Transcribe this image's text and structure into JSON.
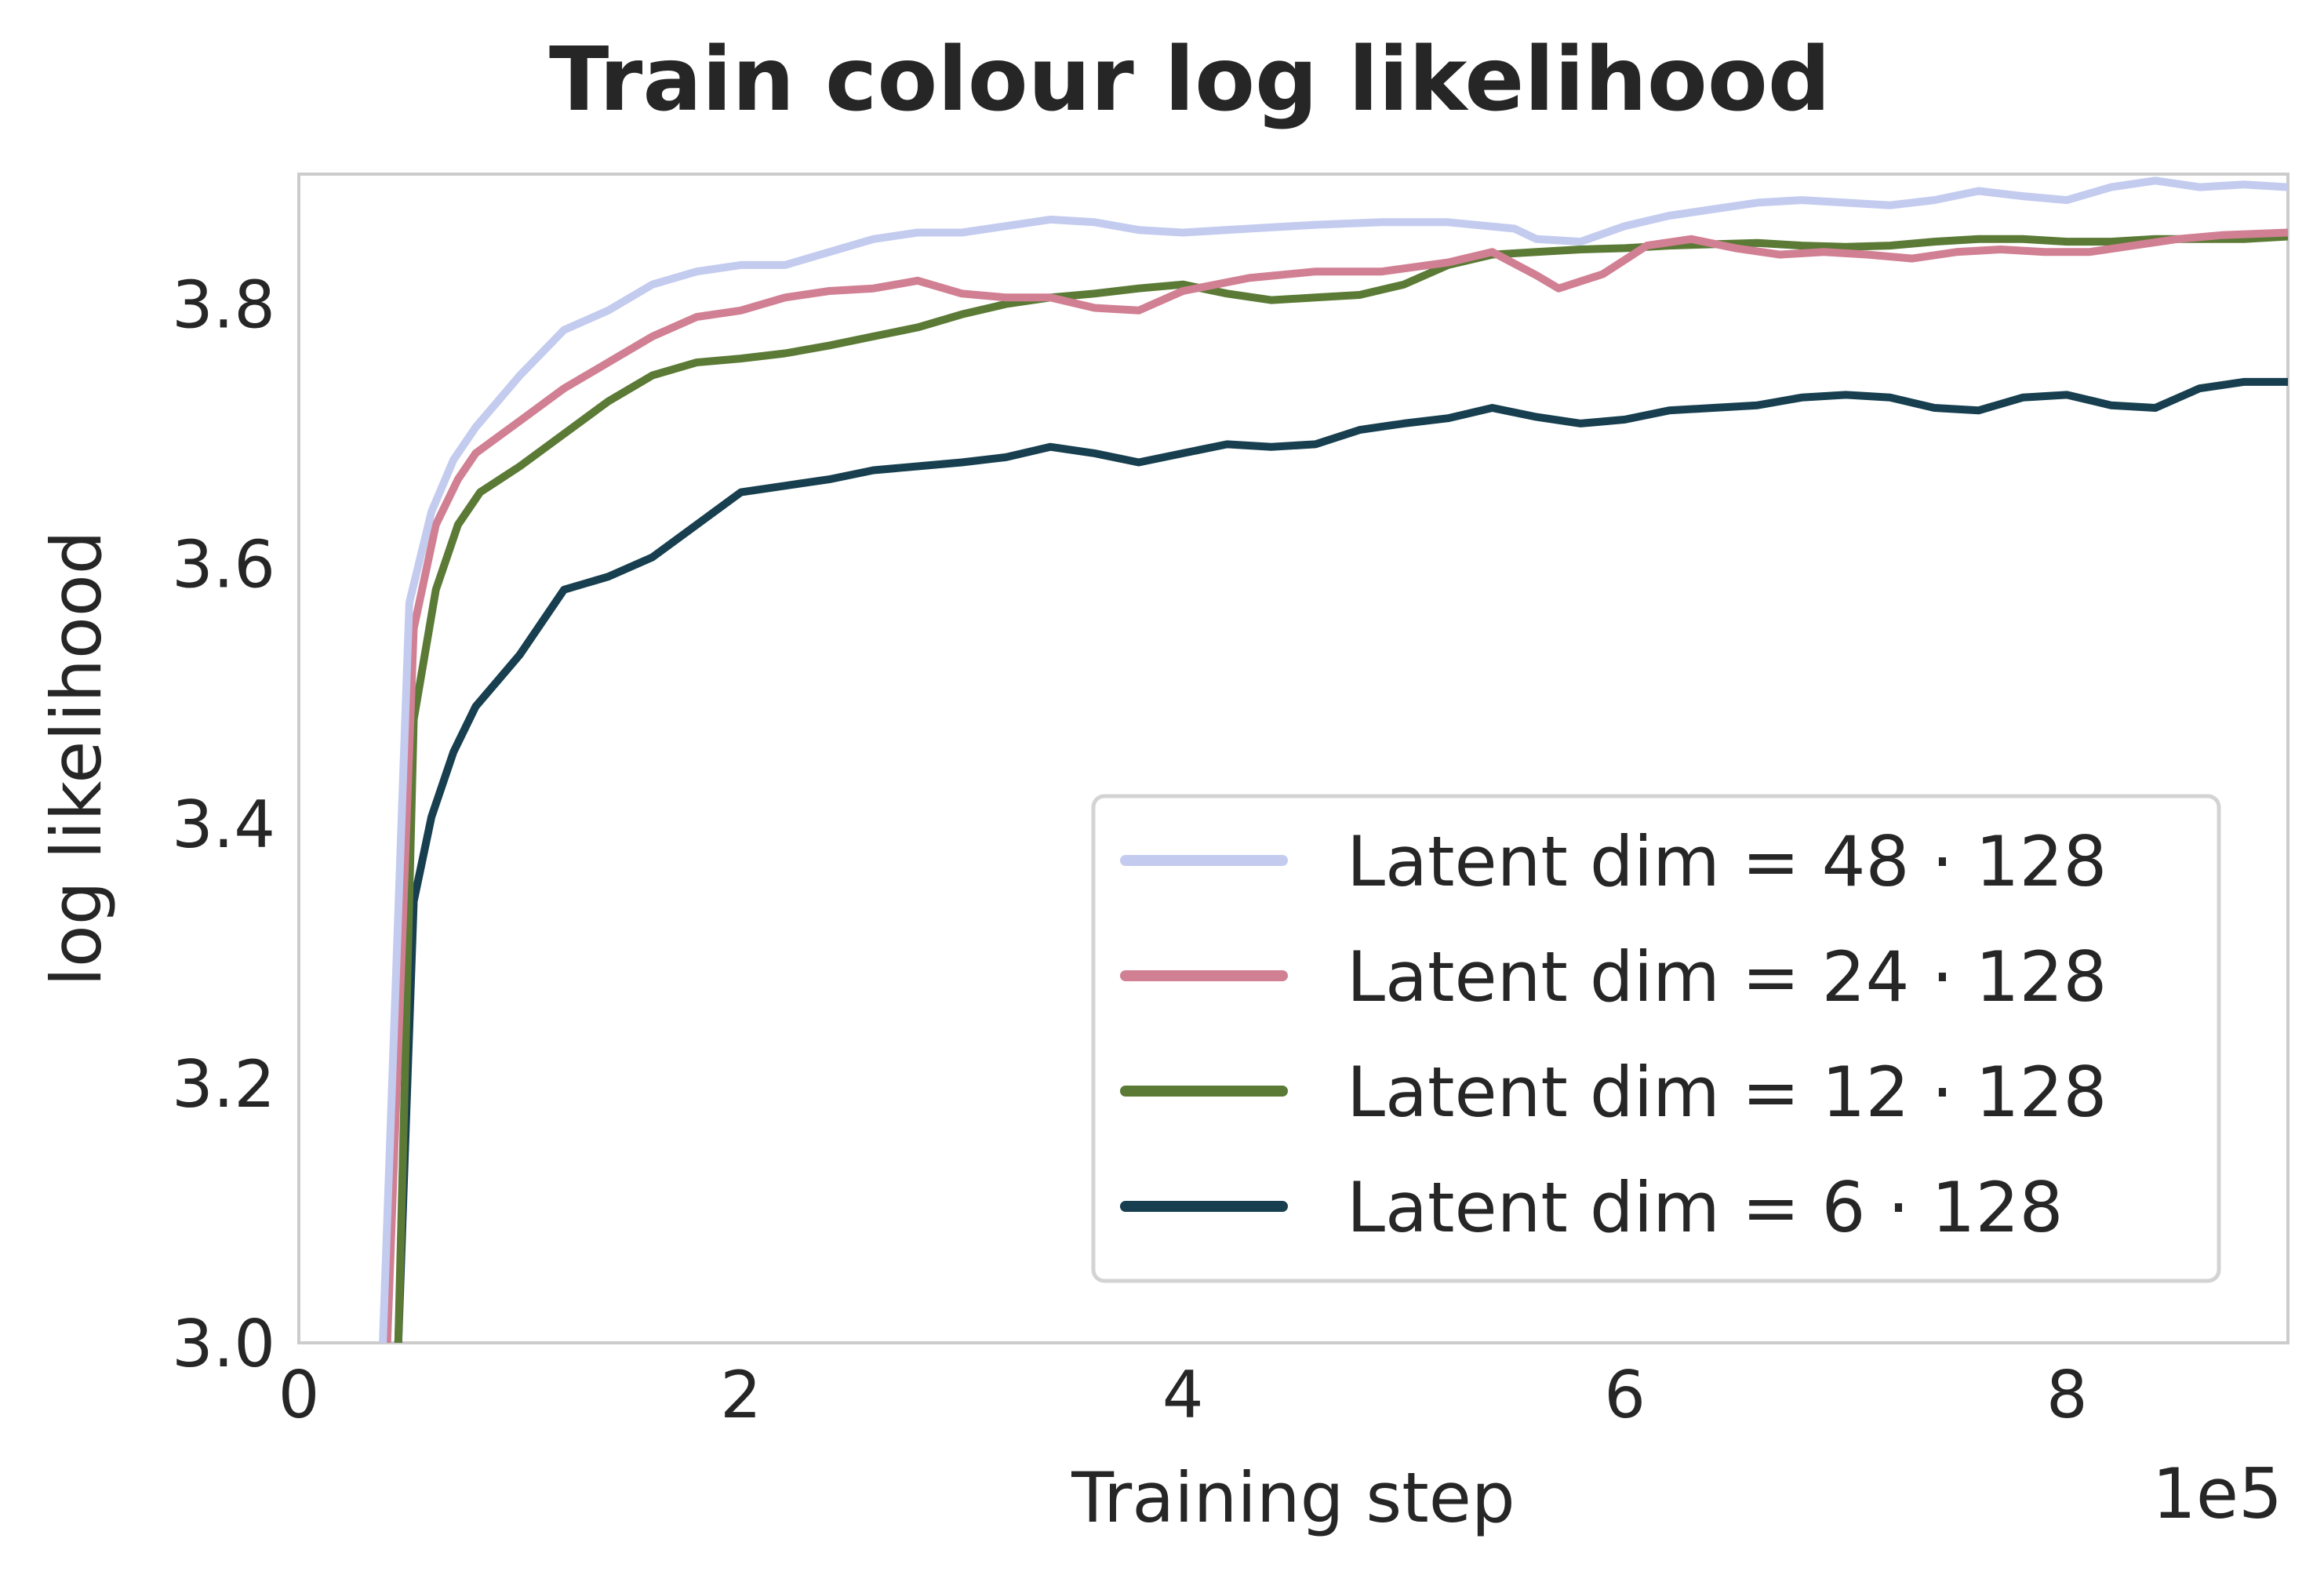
{
  "chart_data": {
    "type": "line",
    "title": "Train colour log likelihood",
    "xlabel": "Training step",
    "ylabel": "log likelihood",
    "x_offset_label": "1e5",
    "xlim": [
      0,
      900000
    ],
    "ylim": [
      3.0,
      3.9
    ],
    "x_ticks": [
      0,
      200000,
      400000,
      600000,
      800000
    ],
    "x_tick_labels": [
      "0",
      "2",
      "4",
      "6",
      "8"
    ],
    "y_ticks": [
      3.0,
      3.2,
      3.4,
      3.6,
      3.8
    ],
    "y_tick_labels": [
      "3.0",
      "3.2",
      "3.4",
      "3.6",
      "3.8"
    ],
    "grid": false,
    "legend_position": "lower-right",
    "series": [
      {
        "name": "Latent dim = 48 · 128",
        "color": "#c3cbef",
        "x": [
          38000,
          50000,
          60000,
          70000,
          80000,
          90000,
          100000,
          120000,
          140000,
          160000,
          180000,
          200000,
          220000,
          240000,
          260000,
          280000,
          300000,
          320000,
          340000,
          360000,
          380000,
          400000,
          430000,
          460000,
          490000,
          520000,
          550000,
          560000,
          580000,
          600000,
          620000,
          640000,
          660000,
          680000,
          700000,
          720000,
          740000,
          760000,
          780000,
          800000,
          820000,
          840000,
          860000,
          880000,
          900000
        ],
        "y": [
          3.0,
          3.57,
          3.64,
          3.68,
          3.705,
          3.725,
          3.745,
          3.78,
          3.795,
          3.815,
          3.825,
          3.83,
          3.83,
          3.84,
          3.85,
          3.855,
          3.855,
          3.86,
          3.865,
          3.863,
          3.857,
          3.855,
          3.858,
          3.861,
          3.863,
          3.863,
          3.858,
          3.85,
          3.848,
          3.86,
          3.868,
          3.873,
          3.878,
          3.88,
          3.878,
          3.876,
          3.88,
          3.887,
          3.883,
          3.88,
          3.89,
          3.895,
          3.89,
          3.892,
          3.89
        ]
      },
      {
        "name": "Latent dim = 24 · 128",
        "color": "#d17f93",
        "x": [
          40000,
          52000,
          62000,
          72000,
          80000,
          100000,
          120000,
          140000,
          160000,
          180000,
          200000,
          220000,
          240000,
          260000,
          280000,
          300000,
          320000,
          340000,
          360000,
          380000,
          400000,
          430000,
          460000,
          490000,
          520000,
          540000,
          560000,
          570000,
          590000,
          610000,
          630000,
          650000,
          670000,
          690000,
          710000,
          730000,
          750000,
          770000,
          790000,
          810000,
          830000,
          850000,
          870000,
          900000
        ],
        "y": [
          3.0,
          3.55,
          3.63,
          3.665,
          3.685,
          3.71,
          3.735,
          3.755,
          3.775,
          3.79,
          3.795,
          3.805,
          3.81,
          3.812,
          3.818,
          3.808,
          3.805,
          3.805,
          3.797,
          3.795,
          3.81,
          3.82,
          3.825,
          3.825,
          3.832,
          3.84,
          3.822,
          3.812,
          3.823,
          3.845,
          3.85,
          3.843,
          3.838,
          3.84,
          3.838,
          3.835,
          3.84,
          3.842,
          3.84,
          3.84,
          3.845,
          3.85,
          3.853,
          3.855
        ]
      },
      {
        "name": "Latent dim = 12 · 128",
        "color": "#5b7a36",
        "x": [
          45000,
          52000,
          62000,
          72000,
          82000,
          100000,
          120000,
          140000,
          160000,
          180000,
          200000,
          220000,
          240000,
          260000,
          280000,
          300000,
          320000,
          340000,
          360000,
          380000,
          400000,
          420000,
          440000,
          460000,
          480000,
          500000,
          520000,
          540000,
          560000,
          580000,
          600000,
          620000,
          640000,
          660000,
          680000,
          700000,
          720000,
          740000,
          760000,
          780000,
          800000,
          820000,
          840000,
          860000,
          880000,
          900000
        ],
        "y": [
          3.0,
          3.48,
          3.58,
          3.63,
          3.655,
          3.675,
          3.7,
          3.725,
          3.745,
          3.755,
          3.758,
          3.762,
          3.768,
          3.775,
          3.782,
          3.792,
          3.8,
          3.805,
          3.808,
          3.812,
          3.815,
          3.808,
          3.803,
          3.805,
          3.807,
          3.815,
          3.83,
          3.838,
          3.84,
          3.842,
          3.843,
          3.845,
          3.846,
          3.847,
          3.845,
          3.844,
          3.845,
          3.848,
          3.85,
          3.85,
          3.848,
          3.848,
          3.85,
          3.85,
          3.85,
          3.852
        ]
      },
      {
        "name": "Latent dim = 6 · 128",
        "color": "#173f4f",
        "x": [
          45000,
          52000,
          60000,
          70000,
          80000,
          90000,
          100000,
          120000,
          130000,
          140000,
          160000,
          180000,
          200000,
          220000,
          240000,
          260000,
          280000,
          300000,
          320000,
          340000,
          360000,
          380000,
          400000,
          420000,
          440000,
          460000,
          480000,
          500000,
          520000,
          540000,
          560000,
          580000,
          600000,
          620000,
          640000,
          660000,
          680000,
          700000,
          720000,
          740000,
          760000,
          780000,
          800000,
          820000,
          840000,
          860000,
          880000,
          900000
        ],
        "y": [
          3.0,
          3.34,
          3.405,
          3.455,
          3.49,
          3.51,
          3.53,
          3.58,
          3.585,
          3.59,
          3.605,
          3.63,
          3.655,
          3.66,
          3.665,
          3.672,
          3.675,
          3.678,
          3.682,
          3.69,
          3.685,
          3.678,
          3.685,
          3.692,
          3.69,
          3.692,
          3.703,
          3.708,
          3.712,
          3.72,
          3.713,
          3.708,
          3.711,
          3.718,
          3.72,
          3.722,
          3.728,
          3.73,
          3.728,
          3.72,
          3.718,
          3.728,
          3.73,
          3.722,
          3.72,
          3.735,
          3.74,
          3.74
        ]
      }
    ]
  }
}
